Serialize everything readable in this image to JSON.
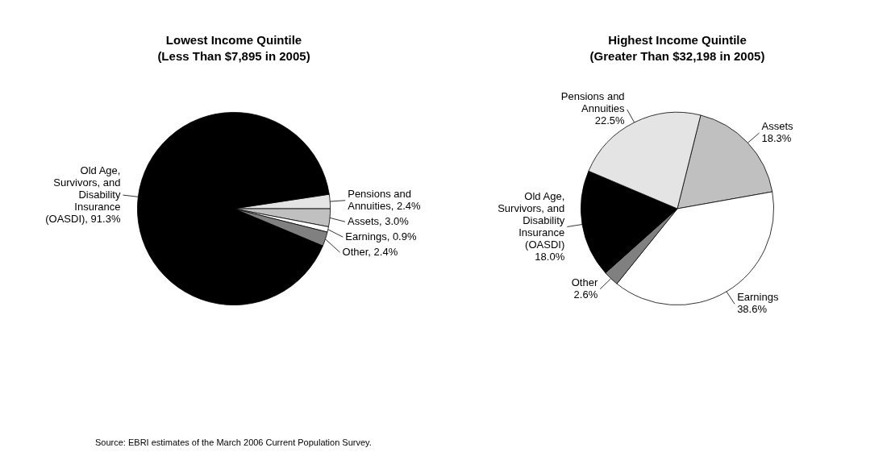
{
  "chart_data": [
    {
      "type": "pie",
      "title": "Lowest Income Quintile",
      "subtitle": "(Less Than $7,895 in 2005)",
      "categories": [
        "Pensions and Annuities",
        "Assets",
        "Earnings",
        "Other",
        "Old Age, Survivors, and Disability Insurance (OASDI)"
      ],
      "values": [
        2.4,
        3.0,
        0.9,
        2.4,
        91.3
      ],
      "colors": [
        "#e4e4e4",
        "#c0c0c0",
        "#ffffff",
        "#808080",
        "#000000"
      ],
      "value_labels": [
        "2.4%",
        "3.0%",
        "0.9%",
        "2.4%",
        "91.3%"
      ],
      "annotations": [
        "Source: EBRI estimates of the March 2006 Current Population Survey."
      ]
    },
    {
      "type": "pie",
      "title": "Highest Income Quintile",
      "subtitle": "(Greater Than $32,198 in 2005)",
      "categories": [
        "Assets",
        "Earnings",
        "Other",
        "Old Age, Survivors, and Disability Insurance (OASDI)",
        "Pensions and Annuities"
      ],
      "values": [
        18.3,
        38.6,
        2.6,
        18.0,
        22.5
      ],
      "colors": [
        "#c0c0c0",
        "#ffffff",
        "#808080",
        "#000000",
        "#e4e4e4"
      ],
      "value_labels": [
        "18.3%",
        "38.6%",
        "2.6%",
        "18.0%",
        "22.5%"
      ]
    }
  ]
}
